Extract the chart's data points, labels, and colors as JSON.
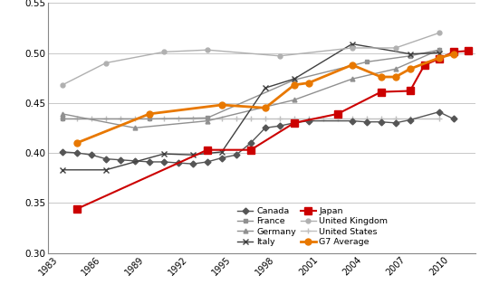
{
  "xlim": [
    1983,
    2012.5
  ],
  "ylim": [
    0.3,
    0.55
  ],
  "yticks": [
    0.3,
    0.35,
    0.4,
    0.45,
    0.5,
    0.55
  ],
  "xticks": [
    1983,
    1986,
    1989,
    1992,
    1995,
    1998,
    2001,
    2004,
    2007,
    2010
  ],
  "background_color": "#ffffff",
  "grid_color": "#c8c8c8",
  "series": [
    {
      "label": "Canada",
      "years": [
        1984,
        1985,
        1986,
        1987,
        1988,
        1989,
        1990,
        1991,
        1992,
        1993,
        1994,
        1995,
        1996,
        1997,
        1998,
        1999,
        2000,
        2001,
        2004,
        2005,
        2006,
        2007,
        2008,
        2010,
        2011
      ],
      "values": [
        0.401,
        0.4,
        0.398,
        0.394,
        0.393,
        0.392,
        0.391,
        0.391,
        0.39,
        0.389,
        0.391,
        0.395,
        0.398,
        0.41,
        0.425,
        0.427,
        0.43,
        0.432,
        0.432,
        0.431,
        0.431,
        0.43,
        0.433,
        0.441,
        0.434
      ],
      "color": "#555555",
      "marker": "D",
      "markersize": 3.5,
      "linewidth": 1.0,
      "zorder": 3
    },
    {
      "label": "France",
      "years": [
        1984,
        1990,
        1994,
        2000,
        2005,
        2008,
        2010
      ],
      "values": [
        0.434,
        0.434,
        0.435,
        0.473,
        0.491,
        0.497,
        0.503
      ],
      "color": "#909090",
      "marker": "s",
      "markersize": 3.5,
      "linewidth": 1.0,
      "zorder": 3
    },
    {
      "label": "Germany",
      "years": [
        1984,
        1989,
        1994,
        2000,
        2004,
        2007,
        2010
      ],
      "values": [
        0.439,
        0.425,
        0.432,
        0.453,
        0.474,
        0.484,
        0.503
      ],
      "color": "#909090",
      "marker": "^",
      "markersize": 3.5,
      "linewidth": 1.0,
      "zorder": 3
    },
    {
      "label": "Italy",
      "years": [
        1984,
        1987,
        1991,
        1993,
        1995,
        1998,
        2000,
        2004,
        2008,
        2010
      ],
      "values": [
        0.383,
        0.383,
        0.399,
        0.398,
        0.401,
        0.465,
        0.474,
        0.509,
        0.499,
        0.5
      ],
      "color": "#404040",
      "marker": "x",
      "markersize": 4.5,
      "linewidth": 1.0,
      "zorder": 3
    },
    {
      "label": "Japan",
      "years": [
        1985,
        1994,
        1997,
        2000,
        2003,
        2006,
        2008,
        2009,
        2010,
        2011,
        2012
      ],
      "values": [
        0.344,
        0.403,
        0.403,
        0.43,
        0.439,
        0.461,
        0.462,
        0.488,
        0.494,
        0.501,
        0.502
      ],
      "color": "#cc0000",
      "marker": "s",
      "markersize": 5.5,
      "linewidth": 1.5,
      "zorder": 5
    },
    {
      "label": "United Kingdom",
      "years": [
        1984,
        1987,
        1991,
        1994,
        1999,
        2004,
        2007,
        2010
      ],
      "values": [
        0.468,
        0.49,
        0.501,
        0.503,
        0.497,
        0.505,
        0.505,
        0.52
      ],
      "color": "#b0b0b0",
      "marker": "o",
      "markersize": 3.5,
      "linewidth": 1.0,
      "zorder": 3
    },
    {
      "label": "United States",
      "years": [
        1984,
        1985,
        1986,
        1987,
        1988,
        1989,
        1990,
        1991,
        1992,
        1993,
        1994,
        1995,
        1996,
        1997,
        1998,
        1999,
        2000,
        2001,
        2002,
        2003,
        2004,
        2005,
        2006,
        2007,
        2008,
        2010
      ],
      "values": [
        0.434,
        0.434,
        0.434,
        0.434,
        0.434,
        0.434,
        0.434,
        0.434,
        0.434,
        0.434,
        0.434,
        0.434,
        0.434,
        0.434,
        0.434,
        0.434,
        0.434,
        0.434,
        0.434,
        0.434,
        0.434,
        0.434,
        0.434,
        0.434,
        0.434,
        0.434
      ],
      "color": "#c0c0c0",
      "marker": "+",
      "markersize": 4.5,
      "linewidth": 1.0,
      "zorder": 2
    },
    {
      "label": "G7 Average",
      "years": [
        1985,
        1990,
        1995,
        1998,
        2000,
        2001,
        2004,
        2006,
        2007,
        2008,
        2010,
        2011
      ],
      "values": [
        0.41,
        0.439,
        0.448,
        0.445,
        0.468,
        0.47,
        0.488,
        0.476,
        0.476,
        0.484,
        0.495,
        0.499
      ],
      "color": "#e87800",
      "marker": "o",
      "markersize": 5.0,
      "linewidth": 2.0,
      "zorder": 6
    }
  ]
}
